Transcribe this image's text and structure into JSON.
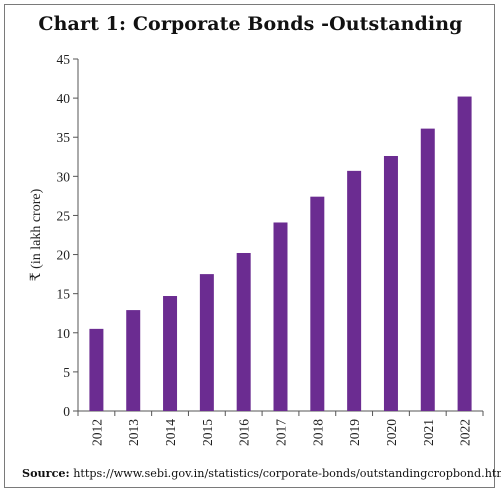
{
  "chart_data": {
    "type": "bar",
    "title": "Chart 1: Corporate Bonds -Outstanding",
    "ylabel": "₹ (in lakh crore)",
    "xlabel": "",
    "categories": [
      "2012",
      "2013",
      "2014",
      "2015",
      "2016",
      "2017",
      "2018",
      "2019",
      "2020",
      "2021",
      "2022"
    ],
    "values": [
      10.5,
      12.9,
      14.7,
      17.5,
      20.2,
      24.1,
      27.4,
      30.7,
      32.6,
      36.1,
      40.2
    ],
    "ylim": [
      0,
      45
    ],
    "yticks": [
      0,
      5,
      10,
      15,
      20,
      25,
      30,
      35,
      40,
      45
    ],
    "grid": false,
    "legend": "none",
    "bar_color": "#6b2c91"
  },
  "source": {
    "label": "Source:",
    "text": " https://www.sebi.gov.in/statistics/corporate-bonds/outstandingcropbond.html"
  }
}
